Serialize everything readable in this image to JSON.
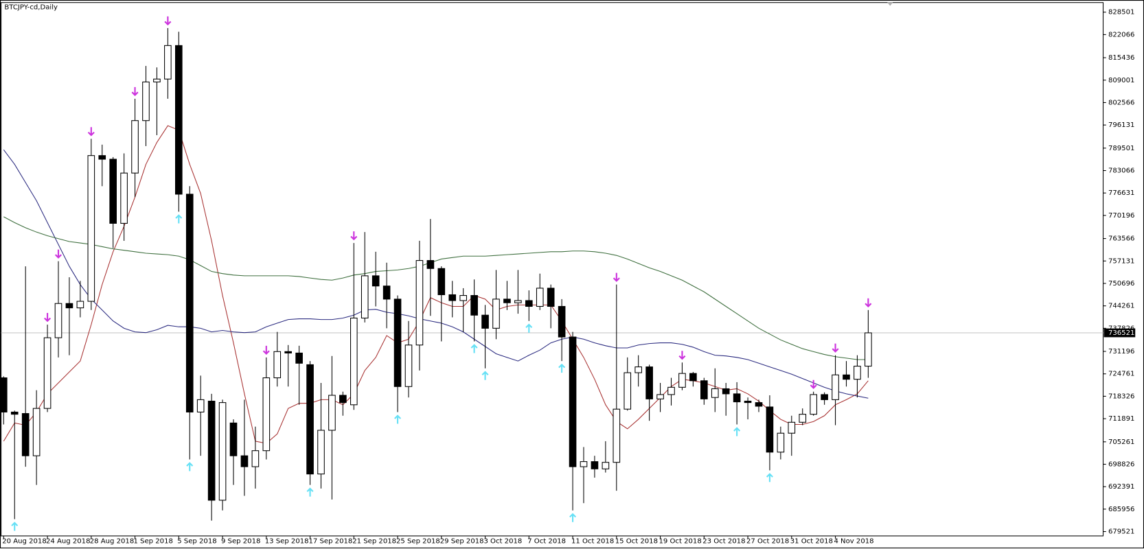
{
  "chart_data": {
    "type": "candlestick",
    "title": "BTCJPY-cd,Daily",
    "categories": [
      "20 Aug 2018",
      null,
      null,
      null,
      "24 Aug 2018",
      null,
      null,
      null,
      "28 Aug 2018",
      null,
      null,
      null,
      "1 Sep 2018",
      null,
      null,
      null,
      "5 Sep 2018",
      null,
      null,
      null,
      "9 Sep 2018",
      null,
      null,
      null,
      "13 Sep 2018",
      null,
      null,
      null,
      "17 Sep 2018",
      null,
      null,
      null,
      "21 Sep 2018",
      null,
      null,
      null,
      "25 Sep 2018",
      null,
      null,
      null,
      "29 Sep 2018",
      null,
      null,
      null,
      "3 Oct 2018",
      null,
      null,
      null,
      "7 Oct 2018",
      null,
      null,
      null,
      "11 Oct 2018",
      null,
      null,
      null,
      "15 Oct 2018",
      null,
      null,
      null,
      "19 Oct 2018",
      null,
      null,
      null,
      "23 Oct 2018",
      null,
      null,
      null,
      "27 Oct 2018",
      null,
      null,
      null,
      "31 Oct 2018",
      null,
      null,
      null,
      "4 Nov 2018",
      null,
      null,
      null
    ],
    "open": [
      723620,
      713797,
      713379,
      701257,
      714842,
      735115,
      744938,
      743684,
      745565,
      787365,
      786320,
      767928,
      782349,
      797397,
      808474,
      809310,
      818924,
      776288,
      713797,
      716932,
      688508,
      710662,
      701257,
      698122,
      702720,
      723620,
      731144,
      730726,
      727382,
      696032,
      708572,
      718604,
      715887,
      740758,
      752880,
      749954,
      746192,
      721112,
      733025,
      757269,
      754970,
      747446,
      745774,
      747237,
      741594,
      737832,
      746192,
      745147,
      745774,
      744102,
      749327,
      744102,
      735324,
      698122,
      699585,
      697495,
      699376,
      714633,
      725083,
      726755,
      717559,
      718813,
      720903,
      724874,
      722784,
      717977,
      720485,
      719022,
      716932,
      716514,
      715260,
      702302,
      707736,
      710871,
      713170,
      718813,
      717350,
      724456,
      723202,
      726964
    ],
    "high": [
      724038,
      714215,
      755597,
      720067,
      738877,
      757060,
      752462,
      751417,
      792172,
      790500,
      786947,
      787992,
      803667,
      813072,
      812654,
      823940,
      822895,
      778587,
      724247,
      719022,
      717350,
      711707,
      717350,
      709617,
      729472,
      736787,
      733025,
      732816,
      728427,
      722157,
      729890,
      719649,
      762285,
      765420,
      759777,
      756642,
      747237,
      739922,
      762912,
      769182,
      755597,
      751417,
      749327,
      751835,
      744520,
      754552,
      751417,
      754552,
      748700,
      753507,
      750372,
      746192,
      736787,
      703765,
      701257,
      705437,
      750372,
      729472,
      730099,
      727382,
      722157,
      723620,
      728009,
      725292,
      723620,
      726337,
      722157,
      722366,
      717977,
      717350,
      718604,
      709617,
      712752,
      714842,
      719649,
      719440,
      730099,
      728427,
      730099,
      743057
    ],
    "low": [
      710244,
      683074,
      698122,
      692897,
      713797,
      729472,
      730099,
      740967,
      743057,
      778587,
      760822,
      762912,
      775452,
      790082,
      793217,
      803667,
      771272,
      700212,
      701257,
      682656,
      685582,
      692897,
      689762,
      691852,
      700212,
      721112,
      721112,
      715887,
      692897,
      691852,
      688717,
      712752,
      714424,
      739504,
      744102,
      737832,
      713797,
      717977,
      725710,
      741385,
      734070,
      740967,
      736787,
      734070,
      726337,
      734697,
      743057,
      742012,
      739922,
      743057,
      737832,
      728427,
      685582,
      687672,
      694987,
      696450,
      691225,
      714215,
      721112,
      711289,
      713797,
      715678,
      720067,
      721112,
      715887,
      713797,
      712752,
      710244,
      711707,
      713797,
      697077,
      700212,
      701257,
      710035,
      712752,
      715887,
      710035,
      721112,
      717977,
      723620
    ],
    "close": [
      713797,
      713170,
      701257,
      714842,
      735115,
      744938,
      743684,
      745565,
      787365,
      786320,
      767928,
      782349,
      797397,
      808474,
      809310,
      818924,
      776288,
      713797,
      717350,
      688508,
      716514,
      701257,
      698122,
      702720,
      723620,
      731144,
      730726,
      727800,
      696032,
      708572,
      718604,
      716514,
      740758,
      752880,
      749954,
      746192,
      721112,
      733025,
      757269,
      754970,
      747446,
      745774,
      747237,
      741594,
      737832,
      746192,
      745147,
      745774,
      744102,
      749327,
      744102,
      735324,
      698122,
      699585,
      697495,
      699376,
      714633,
      725083,
      726755,
      717559,
      718813,
      720903,
      724874,
      722784,
      717559,
      720485,
      719022,
      716723,
      716514,
      715469,
      702302,
      707736,
      710871,
      713170,
      718813,
      717350,
      724456,
      723202,
      726964,
      736521
    ],
    "up_color": "#ffffff",
    "down_color": "#000000",
    "lines": [
      {
        "color": "#a83232",
        "values": [
          705440,
          710660,
          710030,
          713800,
          719020,
          722160,
          725290,
          728430,
          738880,
          750370,
          759780,
          767090,
          775450,
          784860,
          791130,
          795930,
          794680,
          784860,
          776500,
          762910,
          747240,
          733650,
          719020,
          705440,
          704810,
          707530,
          714840,
          716310,
          716310,
          717350,
          717350,
          715890,
          719020,
          725710,
          729470,
          735740,
          733650,
          734700,
          739920,
          746610,
          745150,
          744100,
          744100,
          747240,
          746190,
          743060,
          744100,
          744520,
          744520,
          744520,
          744520,
          739920,
          734700,
          729470,
          723200,
          715890,
          711080,
          708990,
          711710,
          714840,
          717980,
          721110,
          723200,
          722780,
          722160,
          721110,
          720070,
          720490,
          719020,
          716930,
          714220,
          711710,
          710240,
          710240,
          711080,
          712750,
          715890,
          717350,
          719020,
          722780
        ]
      },
      {
        "color": "#2b2b80",
        "values": [
          789040,
          784860,
          779630,
          774410,
          768140,
          761870,
          755600,
          750370,
          746190,
          743060,
          739920,
          737830,
          736790,
          736580,
          737410,
          738670,
          738250,
          738250,
          737830,
          736790,
          737210,
          736790,
          736580,
          736790,
          738250,
          739300,
          740340,
          740550,
          740550,
          740340,
          740340,
          740760,
          741590,
          743060,
          743270,
          742430,
          742010,
          741390,
          740550,
          739920,
          739300,
          738250,
          736790,
          734700,
          732610,
          730520,
          729470,
          728430,
          730100,
          731560,
          733650,
          734700,
          735320,
          734700,
          733650,
          732820,
          732190,
          732190,
          733030,
          733440,
          733650,
          733650,
          733230,
          732400,
          731140,
          730100,
          729890,
          729470,
          728850,
          727800,
          726760,
          725710,
          724670,
          723410,
          722160,
          720900,
          719860,
          719020,
          718400,
          717770
        ]
      },
      {
        "color": "#3d6e3d",
        "values": [
          769810,
          768140,
          766670,
          765420,
          764380,
          763540,
          762700,
          762290,
          761870,
          761240,
          760610,
          760200,
          759780,
          759360,
          759150,
          758940,
          758520,
          757480,
          755810,
          754130,
          753510,
          753090,
          752880,
          752880,
          752880,
          752880,
          752880,
          752670,
          752250,
          751840,
          751630,
          752250,
          753090,
          753510,
          754130,
          754340,
          754550,
          754970,
          755600,
          756640,
          757690,
          758110,
          758520,
          758520,
          758520,
          758730,
          758940,
          759150,
          759360,
          759570,
          759780,
          759780,
          759990,
          759990,
          759780,
          759360,
          758730,
          757690,
          756430,
          755180,
          754130,
          752880,
          751630,
          749950,
          748280,
          746190,
          744100,
          742010,
          739920,
          737830,
          736160,
          734490,
          733230,
          731980,
          731140,
          730310,
          729680,
          729260,
          728850,
          728850
        ]
      }
    ],
    "arrows_down": {
      "color": "#cc33dd",
      "values": [
        null,
        null,
        null,
        null,
        738877,
        757060,
        null,
        null,
        792172,
        null,
        null,
        null,
        803667,
        null,
        null,
        823940,
        null,
        null,
        null,
        null,
        null,
        null,
        null,
        null,
        729472,
        null,
        null,
        null,
        null,
        null,
        null,
        null,
        762285,
        null,
        null,
        null,
        null,
        null,
        null,
        null,
        null,
        null,
        null,
        null,
        null,
        null,
        null,
        null,
        null,
        null,
        null,
        null,
        null,
        null,
        null,
        null,
        750372,
        null,
        null,
        null,
        null,
        null,
        728009,
        null,
        null,
        null,
        null,
        null,
        null,
        null,
        null,
        null,
        null,
        null,
        719649,
        null,
        730099,
        null,
        null,
        743057
      ]
    },
    "arrows_up": {
      "color": "#66e0f5",
      "values": [
        null,
        683074,
        null,
        null,
        null,
        null,
        null,
        null,
        null,
        null,
        null,
        null,
        null,
        null,
        null,
        null,
        771272,
        700212,
        null,
        null,
        null,
        null,
        null,
        null,
        null,
        null,
        null,
        null,
        692897,
        null,
        null,
        null,
        null,
        null,
        null,
        null,
        713797,
        null,
        null,
        null,
        null,
        null,
        null,
        734070,
        726337,
        null,
        null,
        null,
        739922,
        null,
        null,
        728427,
        685582,
        null,
        null,
        null,
        null,
        null,
        null,
        null,
        null,
        null,
        null,
        null,
        null,
        null,
        null,
        710244,
        null,
        null,
        697077,
        null,
        null,
        null,
        null,
        null,
        null,
        null,
        null,
        null
      ]
    },
    "last_price": 736521,
    "ylim": [
      678270,
      831255
    ],
    "yticks": [
      828501,
      822066,
      815436,
      809001,
      802566,
      796131,
      789501,
      783066,
      776631,
      770196,
      763566,
      757131,
      750696,
      744261,
      737826,
      731196,
      724761,
      718326,
      711891,
      705261,
      698826,
      692391,
      685956,
      679521
    ],
    "grid": false
  }
}
